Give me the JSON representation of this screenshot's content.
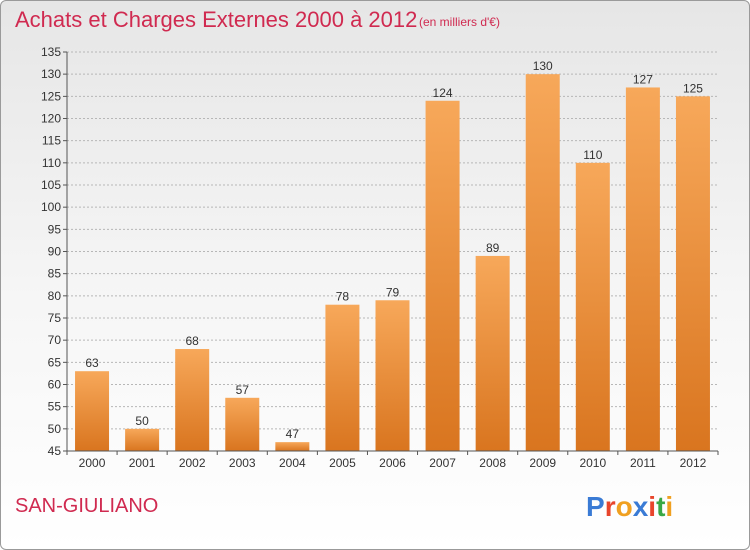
{
  "header": {
    "title": "Achats et Charges Externes 2000 à 2012",
    "units": "(en milliers d'€)"
  },
  "commune": "SAN-GIULIANO",
  "logo": {
    "text": "Proxiti",
    "colors": [
      "#3a7bd5",
      "#e8452c",
      "#f0a020",
      "#3a7bd5",
      "#e8452c",
      "#3aa845",
      "#f0a020"
    ]
  },
  "colors": {
    "title": "#d02a50",
    "bar_top": "#f7a85a",
    "bar_bottom": "#d9751f",
    "grid": "#b7b7b7"
  },
  "chart_data": {
    "type": "bar",
    "title": "Achats et Charges Externes 2000 à 2012",
    "subtitle": "(en milliers d'€)",
    "categories": [
      "2000",
      "2001",
      "2002",
      "2003",
      "2004",
      "2005",
      "2006",
      "2007",
      "2008",
      "2009",
      "2010",
      "2011",
      "2012"
    ],
    "values": [
      63,
      50,
      68,
      57,
      47,
      78,
      79,
      124,
      89,
      130,
      110,
      127,
      125
    ],
    "ylim": [
      45,
      135
    ],
    "yticks": [
      45,
      50,
      55,
      60,
      65,
      70,
      75,
      80,
      85,
      90,
      95,
      100,
      105,
      110,
      115,
      120,
      125,
      130,
      135
    ],
    "grid": true,
    "xlabel": "",
    "ylabel": ""
  }
}
